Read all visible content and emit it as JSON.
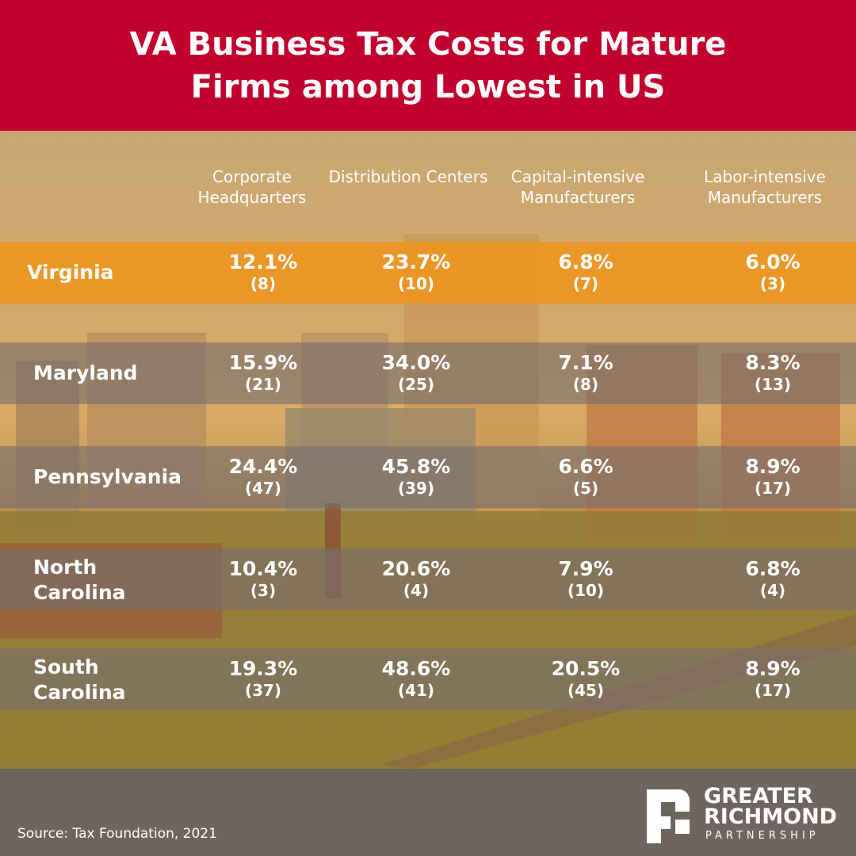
{
  "header": {
    "title": "VA Business Tax Costs for Mature Firms among Lowest in US"
  },
  "table": {
    "columns": [
      "Corporate Headquarters",
      "Distribution Centers",
      "Capital-intensive Manufacturers",
      "Labor-intensive Manufacturers"
    ],
    "rows": [
      {
        "state": "Virginia",
        "cells": [
          {
            "value": "12.1%",
            "rank": "(8)"
          },
          {
            "value": "23.7%",
            "rank": "(10)"
          },
          {
            "value": "6.8%",
            "rank": "(7)"
          },
          {
            "value": "6.0%",
            "rank": "(3)"
          }
        ]
      },
      {
        "state": "Maryland",
        "cells": [
          {
            "value": "15.9%",
            "rank": "(21)"
          },
          {
            "value": "34.0%",
            "rank": "(25)"
          },
          {
            "value": "7.1%",
            "rank": "(8)"
          },
          {
            "value": "8.3%",
            "rank": "(13)"
          }
        ]
      },
      {
        "state": "Pennsylvania",
        "cells": [
          {
            "value": "24.4%",
            "rank": "(47)"
          },
          {
            "value": "45.8%",
            "rank": "(39)"
          },
          {
            "value": "6.6%",
            "rank": "(5)"
          },
          {
            "value": "8.9%",
            "rank": "(17)"
          }
        ]
      },
      {
        "state": "North Carolina",
        "cells": [
          {
            "value": "10.4%",
            "rank": "(3)"
          },
          {
            "value": "20.6%",
            "rank": "(4)"
          },
          {
            "value": "7.9%",
            "rank": "(10)"
          },
          {
            "value": "6.8%",
            "rank": "(4)"
          }
        ]
      },
      {
        "state": "South Carolina",
        "cells": [
          {
            "value": "19.3%",
            "rank": "(37)"
          },
          {
            "value": "48.6%",
            "rank": "(41)"
          },
          {
            "value": "20.5%",
            "rank": "(45)"
          },
          {
            "value": "8.9%",
            "rank": "(17)"
          }
        ]
      }
    ]
  },
  "footer": {
    "source": "Source: Tax Foundation, 2021",
    "logo": [
      "GREATER",
      "RICHMOND",
      "PARTNERSHIP"
    ]
  }
}
